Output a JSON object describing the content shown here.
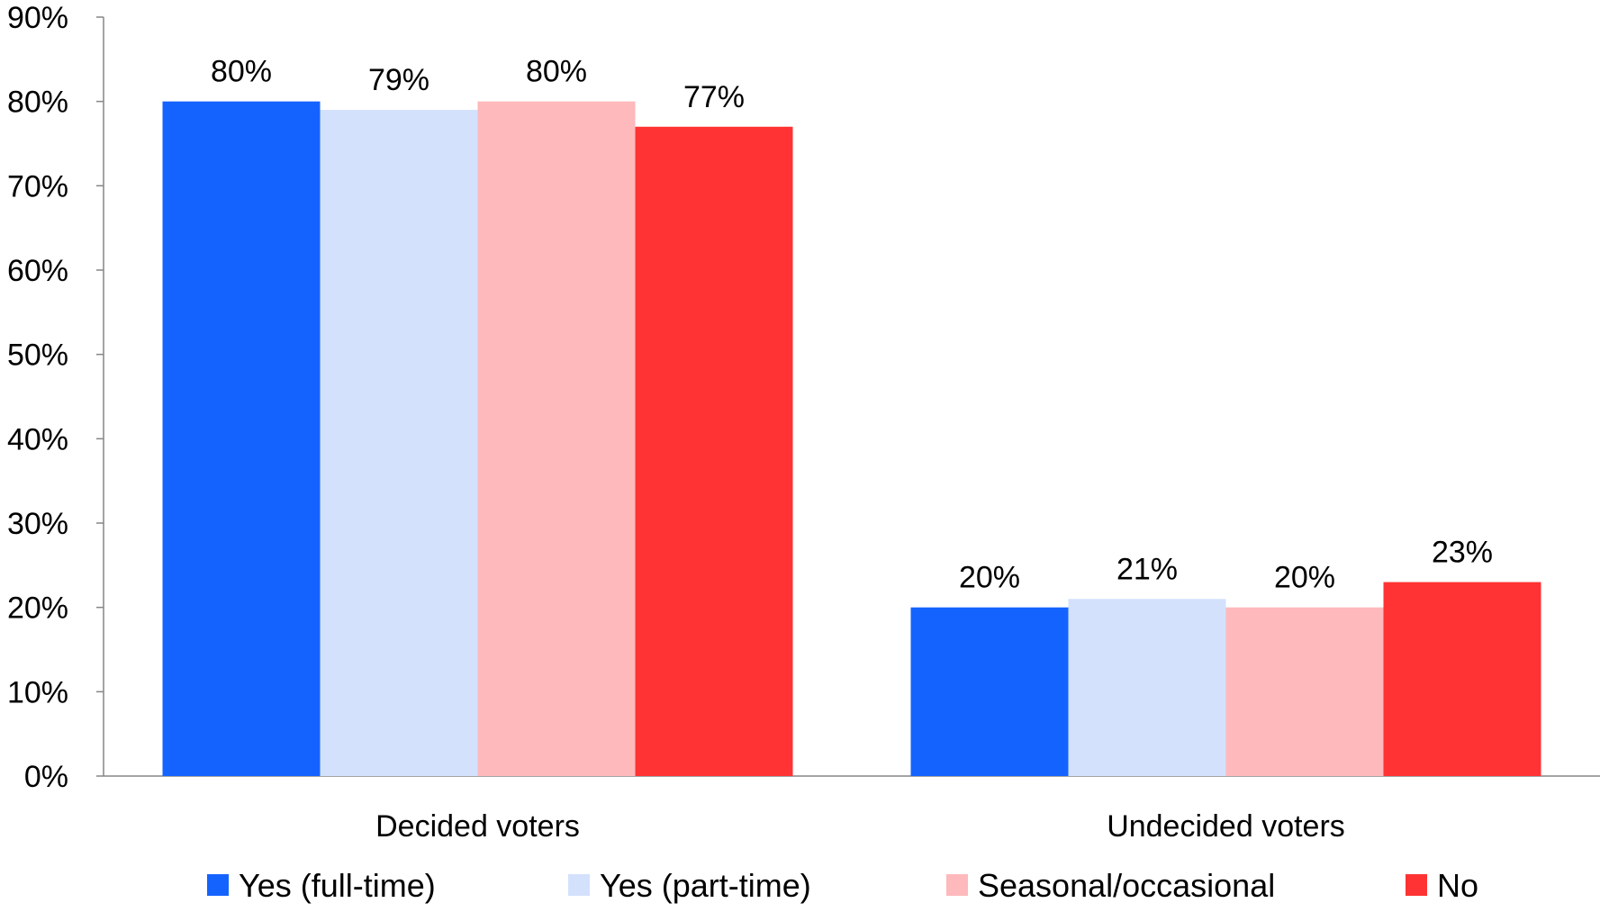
{
  "chart_data": {
    "type": "bar",
    "title": "",
    "xlabel": "",
    "ylabel": "",
    "categories": [
      "Decided voters",
      "Undecided voters"
    ],
    "series": [
      {
        "name": "Yes (full-time)",
        "color": "#1563FF",
        "values": [
          80,
          20
        ],
        "labels": [
          "80%",
          "20%"
        ]
      },
      {
        "name": "Yes (part-time)",
        "color": "#D3E1FD",
        "values": [
          79,
          21
        ],
        "labels": [
          "79%",
          "21%"
        ]
      },
      {
        "name": "Seasonal/occasional",
        "color": "#FEB9BC",
        "values": [
          80,
          20
        ],
        "labels": [
          "80%",
          "20%"
        ]
      },
      {
        "name": "No",
        "color": "#FF3333",
        "values": [
          77,
          23
        ],
        "labels": [
          "77%",
          "23%"
        ]
      }
    ],
    "ylim": [
      0,
      90
    ],
    "yticks": [
      0,
      10,
      20,
      30,
      40,
      50,
      60,
      70,
      80,
      90
    ],
    "ytick_labels": [
      "0%",
      "10%",
      "20%",
      "30%",
      "40%",
      "50%",
      "60%",
      "70%",
      "80%",
      "90%"
    ],
    "grid": false,
    "legend_position": "bottom"
  }
}
